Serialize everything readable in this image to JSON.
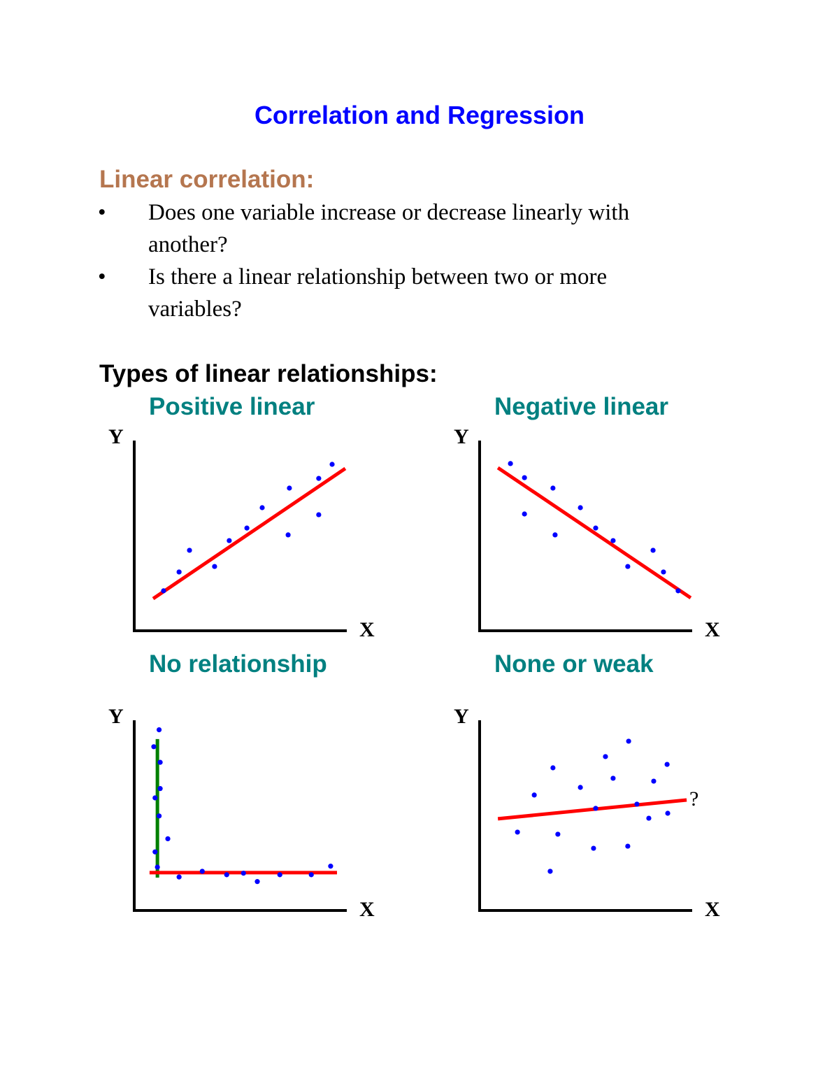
{
  "title": "Correlation and Regression",
  "section1": {
    "heading": "Linear correlation:",
    "bullets": [
      {
        "line1": "Does one variable increase or decrease linearly with",
        "line2": "another?"
      },
      {
        "line1": "Is there a linear relationship between two or more",
        "line2": "variables?"
      }
    ],
    "bullet_glyph": "•"
  },
  "section2": {
    "heading": "Types of linear relationships:"
  },
  "colors": {
    "title": "#0000ff",
    "heading": "#b5764f",
    "subtitle": "#008080",
    "points": "#0000ff",
    "fit_line": "#ff0000",
    "vertical_line": "#008000"
  },
  "chart_data": [
    {
      "type": "scatter",
      "title": "Positive linear",
      "xlabel": "X",
      "ylabel": "Y",
      "xlim": [
        0,
        100
      ],
      "ylim": [
        0,
        100
      ],
      "points": [
        [
          13.8,
          21.0
        ],
        [
          21.1,
          30.9
        ],
        [
          26.0,
          42.3
        ],
        [
          37.8,
          33.8
        ],
        [
          44.7,
          47.4
        ],
        [
          53.0,
          54.0
        ],
        [
          60.2,
          64.7
        ],
        [
          72.4,
          50.4
        ],
        [
          73.0,
          75.0
        ],
        [
          86.8,
          61.0
        ],
        [
          86.8,
          80.1
        ],
        [
          93.1,
          87.5
        ]
      ],
      "lines": [
        {
          "color": "#ff0000",
          "from": [
            8.9,
            16.9
          ],
          "to": [
            99.3,
            85.3
          ]
        }
      ]
    },
    {
      "type": "scatter",
      "title": "Negative linear",
      "xlabel": "X",
      "ylabel": "Y",
      "xlim": [
        0,
        100
      ],
      "ylim": [
        0,
        100
      ],
      "points": [
        [
          14.5,
          87.9
        ],
        [
          21.1,
          80.5
        ],
        [
          21.1,
          61.4
        ],
        [
          34.5,
          75.0
        ],
        [
          35.5,
          50.4
        ],
        [
          47.4,
          64.7
        ],
        [
          54.6,
          54.0
        ],
        [
          62.8,
          47.4
        ],
        [
          69.7,
          33.8
        ],
        [
          81.6,
          42.3
        ],
        [
          86.5,
          30.9
        ],
        [
          93.4,
          21.0
        ]
      ],
      "lines": [
        {
          "color": "#ff0000",
          "from": [
            8.6,
            85.7
          ],
          "to": [
            99.3,
            17.3
          ]
        }
      ]
    },
    {
      "type": "scatter",
      "title": "No relationship",
      "xlabel": "X",
      "ylabel": "Y",
      "xlim": [
        0,
        100
      ],
      "ylim": [
        0,
        100
      ],
      "points": [
        [
          11.7,
          95.0
        ],
        [
          9.2,
          86.1
        ],
        [
          12.2,
          77.9
        ],
        [
          12.2,
          64.1
        ],
        [
          9.8,
          59.2
        ],
        [
          11.7,
          49.7
        ],
        [
          15.8,
          37.7
        ],
        [
          9.8,
          30.8
        ],
        [
          10.9,
          22.8
        ],
        [
          21.1,
          17.6
        ],
        [
          32.0,
          20.6
        ],
        [
          43.5,
          18.8
        ],
        [
          51.4,
          19.6
        ],
        [
          57.9,
          15.2
        ],
        [
          68.5,
          18.8
        ],
        [
          83.3,
          18.8
        ],
        [
          92.4,
          23.3
        ]
      ],
      "lines": [
        {
          "color": "#008000",
          "from": [
            10.9,
            90.1
          ],
          "to": [
            10.9,
            17.3
          ]
        },
        {
          "color": "#ff0000",
          "from": [
            7.2,
            19.9
          ],
          "to": [
            95.4,
            19.9
          ]
        }
      ]
    },
    {
      "type": "scatter",
      "title": "None or weak",
      "xlabel": "X",
      "ylabel": "Y",
      "xlim": [
        0,
        100
      ],
      "ylim": [
        0,
        100
      ],
      "points": [
        [
          17.8,
          41.2
        ],
        [
          25.7,
          60.7
        ],
        [
          34.5,
          75.0
        ],
        [
          33.2,
          20.6
        ],
        [
          36.8,
          40.1
        ],
        [
          47.4,
          64.7
        ],
        [
          53.6,
          32.7
        ],
        [
          54.6,
          53.7
        ],
        [
          59.2,
          80.9
        ],
        [
          62.8,
          69.5
        ],
        [
          70.1,
          89.0
        ],
        [
          69.7,
          33.8
        ],
        [
          74.0,
          55.9
        ],
        [
          79.6,
          48.5
        ],
        [
          81.9,
          68.0
        ],
        [
          88.2,
          76.8
        ],
        [
          88.5,
          51.1
        ]
      ],
      "lines": [
        {
          "color": "#ff0000",
          "from": [
            8.6,
            48.2
          ],
          "to": [
            97.4,
            58.1
          ]
        }
      ],
      "annotation": "?"
    }
  ]
}
